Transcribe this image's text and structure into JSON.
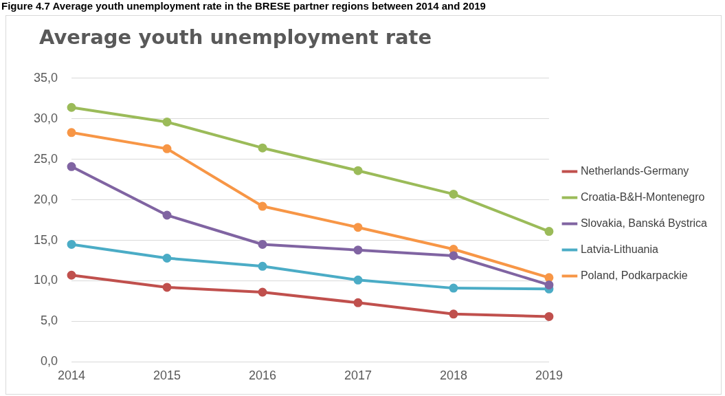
{
  "chart_data": {
    "type": "line",
    "title": "Average youth unemployment rate",
    "annotations": [
      "Figure 4.7  Average youth unemployment rate in the BRESE partner regions between 2014 and 2019"
    ],
    "categories": [
      "2014",
      "2015",
      "2016",
      "2017",
      "2018",
      "2019"
    ],
    "series": [
      {
        "name": "Netherlands-Germany",
        "color": "#c0504d",
        "values": [
          10.7,
          9.2,
          8.6,
          7.3,
          5.9,
          5.6
        ]
      },
      {
        "name": "Croatia-B&H-Montenegro",
        "color": "#9bbb59",
        "values": [
          31.4,
          29.6,
          26.4,
          23.6,
          20.7,
          16.1
        ]
      },
      {
        "name": "Slovakia, Banská Bystrica",
        "color": "#8064a2",
        "values": [
          24.1,
          18.1,
          14.5,
          13.8,
          13.1,
          9.5
        ]
      },
      {
        "name": "Latvia-Lithuania",
        "color": "#4bacc6",
        "values": [
          14.5,
          12.8,
          11.8,
          10.1,
          9.1,
          9.0
        ]
      },
      {
        "name": "Poland, Podkarpackie",
        "color": "#f79646",
        "values": [
          28.3,
          26.3,
          19.2,
          16.6,
          13.9,
          10.4
        ]
      }
    ],
    "ylim": [
      0,
      35
    ],
    "yticks": [
      {
        "value": 0,
        "label": "0,0"
      },
      {
        "value": 5,
        "label": "5,0"
      },
      {
        "value": 10,
        "label": "10,0"
      },
      {
        "value": 15,
        "label": "15,0"
      },
      {
        "value": 20,
        "label": "20,0"
      },
      {
        "value": 25,
        "label": "25,0"
      },
      {
        "value": 30,
        "label": "30,0"
      },
      {
        "value": 35,
        "label": "35,0"
      }
    ],
    "grid": "y",
    "legend": "right",
    "marker": "circle",
    "line_style": "solid"
  }
}
